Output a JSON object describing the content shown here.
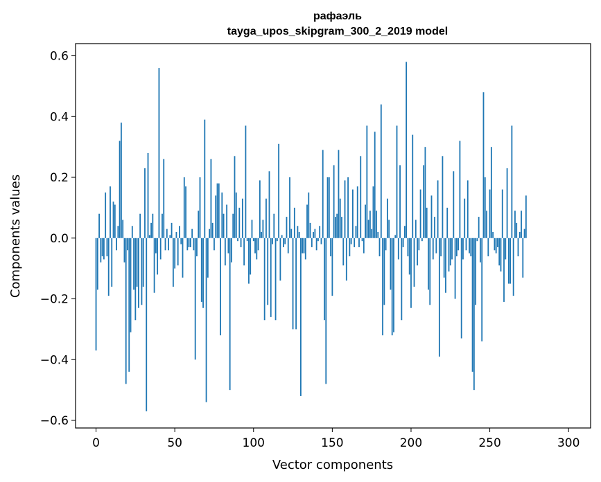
{
  "chart_data": {
    "type": "bar",
    "title_line1": "рафаэль",
    "title_line2": "tayga_upos_skipgram_300_2_2019 model",
    "xlabel": "Vector components",
    "ylabel": "Components values",
    "xlim": [
      -13,
      314
    ],
    "ylim": [
      -0.625,
      0.64
    ],
    "xticks": [
      0,
      50,
      100,
      150,
      200,
      250,
      300
    ],
    "xtick_labels": [
      "0",
      "50",
      "100",
      "150",
      "200",
      "250",
      "300"
    ],
    "yticks": [
      -0.6,
      -0.4,
      -0.2,
      0.0,
      0.2,
      0.4,
      0.6
    ],
    "ytick_labels": [
      "−0.6",
      "−0.4",
      "−0.2",
      "0.0",
      "0.2",
      "0.4",
      "0.6"
    ],
    "bar_color": "#1f77b4",
    "grid": false,
    "values": [
      -0.37,
      -0.17,
      0.08,
      -0.08,
      -0.06,
      -0.07,
      0.15,
      -0.06,
      -0.19,
      0.17,
      -0.16,
      0.12,
      0.11,
      -0.04,
      0.04,
      0.32,
      0.38,
      0.06,
      -0.08,
      -0.48,
      -0.04,
      -0.44,
      -0.31,
      0.04,
      -0.17,
      -0.27,
      -0.16,
      -0.23,
      0.08,
      -0.22,
      -0.16,
      0.23,
      -0.57,
      0.28,
      0.01,
      0.05,
      0.08,
      -0.18,
      -0.05,
      -0.12,
      0.56,
      -0.07,
      0.08,
      0.26,
      -0.04,
      0.03,
      -0.04,
      0.01,
      0.05,
      -0.16,
      -0.1,
      0.02,
      -0.09,
      0.04,
      -0.02,
      -0.13,
      0.2,
      0.17,
      -0.04,
      -0.03,
      -0.03,
      0.03,
      -0.04,
      -0.4,
      -0.06,
      0.09,
      0.2,
      -0.21,
      -0.23,
      0.39,
      -0.54,
      -0.13,
      0.03,
      0.26,
      0.05,
      -0.04,
      0.14,
      0.18,
      0.18,
      -0.32,
      0.15,
      0.08,
      -0.09,
      0.11,
      -0.05,
      -0.5,
      -0.08,
      0.08,
      0.27,
      0.15,
      -0.01,
      0.1,
      -0.03,
      0.13,
      -0.09,
      0.37,
      -0.01,
      -0.15,
      -0.12,
      0.06,
      -0.01,
      -0.05,
      -0.07,
      -0.04,
      0.19,
      0.02,
      0.06,
      -0.27,
      0.13,
      -0.22,
      0.22,
      -0.26,
      -0.02,
      0.08,
      -0.27,
      -0.01,
      0.31,
      -0.14,
      0.01,
      -0.03,
      -0.02,
      0.07,
      -0.05,
      0.2,
      0.03,
      -0.3,
      0.1,
      -0.3,
      0.04,
      0.02,
      -0.52,
      -0.05,
      -0.05,
      -0.07,
      0.11,
      0.15,
      0.05,
      -0.03,
      0.02,
      0.03,
      -0.04,
      -0.01,
      0.04,
      -0.02,
      0.29,
      -0.27,
      -0.48,
      0.2,
      0.2,
      -0.06,
      -0.19,
      0.24,
      0.07,
      0.08,
      0.29,
      0.13,
      0.07,
      -0.09,
      0.19,
      -0.14,
      0.2,
      -0.06,
      -0.02,
      0.16,
      -0.03,
      0.04,
      0.17,
      -0.03,
      0.27,
      -0.01,
      -0.05,
      0.11,
      0.37,
      0.06,
      0.09,
      0.03,
      0.17,
      0.35,
      0.09,
      0.02,
      -0.06,
      0.44,
      -0.32,
      -0.22,
      -0.04,
      0.13,
      0.06,
      -0.17,
      -0.32,
      -0.31,
      0.01,
      0.37,
      -0.07,
      0.24,
      -0.27,
      -0.03,
      0.04,
      0.58,
      -0.06,
      -0.12,
      -0.23,
      0.34,
      -0.16,
      0.06,
      -0.09,
      -0.04,
      0.16,
      -0.01,
      0.24,
      0.3,
      0.1,
      -0.17,
      -0.22,
      0.14,
      -0.07,
      0.07,
      -0.05,
      0.19,
      -0.39,
      -0.06,
      0.27,
      -0.13,
      -0.18,
      0.1,
      -0.11,
      -0.09,
      -0.07,
      0.22,
      -0.2,
      -0.06,
      -0.04,
      0.32,
      -0.33,
      -0.07,
      0.13,
      -0.04,
      0.19,
      -0.05,
      -0.06,
      -0.44,
      -0.5,
      -0.22,
      -0.01,
      0.07,
      -0.08,
      -0.34,
      0.48,
      0.2,
      0.09,
      -0.06,
      0.16,
      0.3,
      0.02,
      -0.04,
      -0.05,
      -0.03,
      -0.09,
      -0.11,
      0.16,
      -0.21,
      -0.07,
      0.23,
      -0.15,
      -0.15,
      0.37,
      -0.19,
      0.09,
      0.05,
      -0.06,
      0.02,
      0.09,
      -0.13,
      0.03,
      0.14
    ],
    "values_note_index_start": 0
  }
}
